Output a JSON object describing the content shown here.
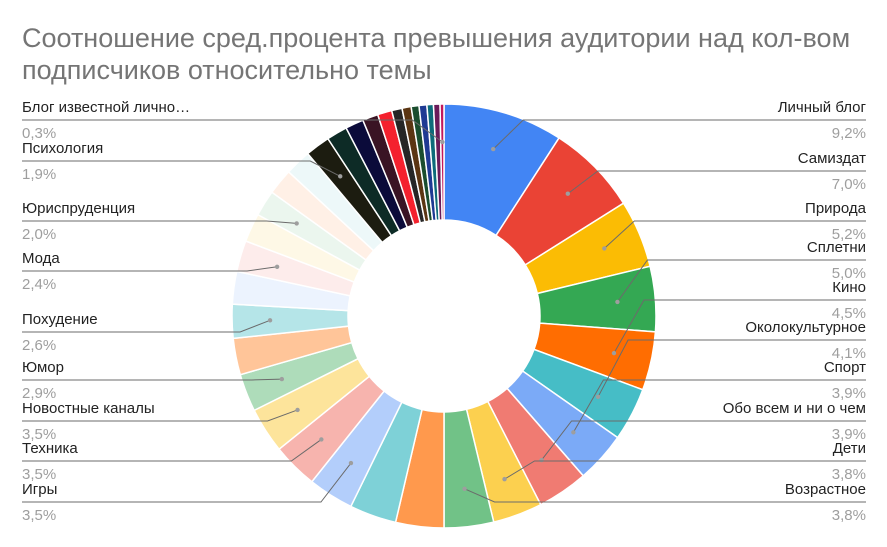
{
  "chart_data": {
    "type": "pie",
    "donut": true,
    "title": "Соотношение сред.процента превышения аудитории над кол-вом подписчиков относительно темы",
    "slices": [
      {
        "label": "Личный блог",
        "pct": "9,2%",
        "value": 9.2,
        "color": "#4285F4",
        "shown": true
      },
      {
        "label": "Самиздат",
        "pct": "7,0%",
        "value": 7.0,
        "color": "#EA4335",
        "shown": true
      },
      {
        "label": "Природа",
        "pct": "5,2%",
        "value": 5.2,
        "color": "#FBBC04",
        "shown": true
      },
      {
        "label": "Сплетни",
        "pct": "5,0%",
        "value": 5.0,
        "color": "#34A853",
        "shown": true
      },
      {
        "label": "Кино",
        "pct": "4,5%",
        "value": 4.5,
        "color": "#FF6D01",
        "shown": true
      },
      {
        "label": "Околокультурное",
        "pct": "4,1%",
        "value": 4.1,
        "color": "#46BDC6",
        "shown": true
      },
      {
        "label": "Спорт",
        "pct": "3,9%",
        "value": 3.9,
        "color": "#7BAAF7",
        "shown": true
      },
      {
        "label": "Обо всем и ни о чем",
        "pct": "3,9%",
        "value": 3.9,
        "color": "#F07B72",
        "shown": true
      },
      {
        "label": "Дети",
        "pct": "3,8%",
        "value": 3.8,
        "color": "#FCD04F",
        "shown": true
      },
      {
        "label": "Возрастное",
        "pct": "3,8%",
        "value": 3.8,
        "color": "#71C287",
        "shown": true
      },
      {
        "label": "",
        "pct": "",
        "value": 3.7,
        "color": "#FF994D",
        "shown": false
      },
      {
        "label": "",
        "pct": "",
        "value": 3.6,
        "color": "#7ED1D7",
        "shown": false
      },
      {
        "label": "Игры",
        "pct": "3,5%",
        "value": 3.5,
        "color": "#B3CEFB",
        "shown": true
      },
      {
        "label": "Техника",
        "pct": "3,5%",
        "value": 3.5,
        "color": "#F7B4AE",
        "shown": true
      },
      {
        "label": "Новостные каналы",
        "pct": "3,5%",
        "value": 3.5,
        "color": "#FDE49B",
        "shown": true
      },
      {
        "label": "Юмор",
        "pct": "2,9%",
        "value": 2.9,
        "color": "#AEDCBA",
        "shown": true
      },
      {
        "label": "",
        "pct": "",
        "value": 2.8,
        "color": "#FFC599",
        "shown": false
      },
      {
        "label": "Похудение",
        "pct": "2,6%",
        "value": 2.6,
        "color": "#B5E5E8",
        "shown": true
      },
      {
        "label": "",
        "pct": "",
        "value": 2.5,
        "color": "#ECF3FE",
        "shown": false
      },
      {
        "label": "Мода",
        "pct": "2,4%",
        "value": 2.4,
        "color": "#FDECEB",
        "shown": true
      },
      {
        "label": "",
        "pct": "",
        "value": 2.2,
        "color": "#FEF8E6",
        "shown": false
      },
      {
        "label": "Юриспруденция",
        "pct": "2,0%",
        "value": 2.0,
        "color": "#EBF6EE",
        "shown": true
      },
      {
        "label": "",
        "pct": "",
        "value": 2.0,
        "color": "#FFF0E6",
        "shown": false
      },
      {
        "label": "",
        "pct": "",
        "value": 2.0,
        "color": "#EDF8F9",
        "shown": false
      },
      {
        "label": "Психология",
        "pct": "1,9%",
        "value": 1.9,
        "color": "#1C1C10",
        "shown": true
      },
      {
        "label": "",
        "pct": "",
        "value": 1.6,
        "color": "#0D2B26",
        "shown": false
      },
      {
        "label": "",
        "pct": "",
        "value": 1.4,
        "color": "#0B0B3A",
        "shown": false
      },
      {
        "label": "",
        "pct": "",
        "value": 1.2,
        "color": "#3A1424",
        "shown": false
      },
      {
        "label": "",
        "pct": "",
        "value": 1.1,
        "color": "#F4212E",
        "shown": false
      },
      {
        "label": "",
        "pct": "",
        "value": 0.8,
        "color": "#262626",
        "shown": false
      },
      {
        "label": "",
        "pct": "",
        "value": 0.7,
        "color": "#5B3512",
        "shown": false
      },
      {
        "label": "",
        "pct": "",
        "value": 0.6,
        "color": "#1A4D2E",
        "shown": false
      },
      {
        "label": "",
        "pct": "",
        "value": 0.6,
        "color": "#1F3A93",
        "shown": false
      },
      {
        "label": "",
        "pct": "",
        "value": 0.5,
        "color": "#0E6B7A",
        "shown": false
      },
      {
        "label": "",
        "pct": "",
        "value": 0.5,
        "color": "#6A1B5A",
        "shown": false
      },
      {
        "label": "Блог известной лично…",
        "pct": "0,3%",
        "value": 0.3,
        "color": "#C2185B",
        "shown": true
      }
    ]
  }
}
